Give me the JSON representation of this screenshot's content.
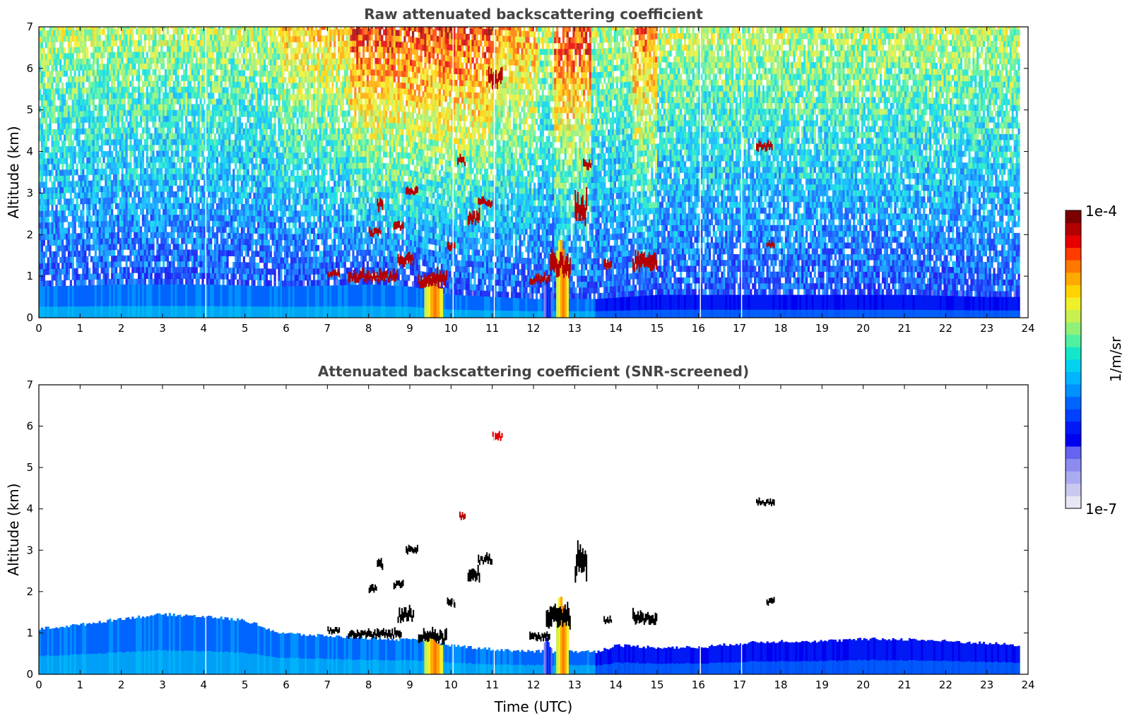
{
  "chart_data": [
    {
      "type": "heatmap",
      "title": "Raw attenuated backscattering coefficient",
      "xlabel": "",
      "ylabel": "Altitude (km)",
      "xlim": [
        0,
        24
      ],
      "ylim": [
        0,
        7
      ],
      "x_ticks": [
        "0",
        "1",
        "2",
        "3",
        "4",
        "5",
        "6",
        "7",
        "8",
        "9",
        "10",
        "11",
        "12",
        "13",
        "14",
        "15",
        "16",
        "17",
        "18",
        "19",
        "20",
        "21",
        "22",
        "23",
        "24"
      ],
      "y_ticks": [
        "0",
        "1",
        "2",
        "3",
        "4",
        "5",
        "6",
        "7"
      ],
      "data_end_time": 23.8,
      "data_gaps": [
        4.05,
        10.05,
        11.05,
        16.05,
        17.05
      ],
      "noise_level": 0.65,
      "boundary_layer": [
        {
          "t": 0,
          "top": 0.75
        },
        {
          "t": 2,
          "top": 0.8
        },
        {
          "t": 4,
          "top": 0.8
        },
        {
          "t": 6,
          "top": 0.75
        },
        {
          "t": 8,
          "top": 0.8
        },
        {
          "t": 9,
          "top": 0.75
        },
        {
          "t": 10,
          "top": 0.55
        },
        {
          "t": 12,
          "top": 0.45
        },
        {
          "t": 13.5,
          "top": 0.45
        },
        {
          "t": 15,
          "top": 0.55
        },
        {
          "t": 18,
          "top": 0.55
        },
        {
          "t": 21,
          "top": 0.55
        },
        {
          "t": 23,
          "top": 0.5
        },
        {
          "t": 23.8,
          "top": 0.5
        }
      ],
      "elevated_noise": [
        {
          "start": 5.8,
          "end": 7.5,
          "level": 0.75
        },
        {
          "start": 7.5,
          "end": 11.0,
          "level": 0.9
        },
        {
          "start": 11.0,
          "end": 12.1,
          "level": 0.8
        },
        {
          "start": 12.5,
          "end": 13.4,
          "level": 0.9
        },
        {
          "start": 14.4,
          "end": 15.0,
          "level": 0.85
        }
      ],
      "clouds": [
        {
          "t0": 7.0,
          "t1": 7.3,
          "z0": 1.0,
          "z1": 1.15,
          "level": 0.95
        },
        {
          "t0": 7.5,
          "t1": 8.7,
          "z0": 0.9,
          "z1": 1.15,
          "level": 0.95
        },
        {
          "t0": 8.0,
          "t1": 8.3,
          "z0": 2.0,
          "z1": 2.2,
          "level": 0.95
        },
        {
          "t0": 8.2,
          "t1": 8.35,
          "z0": 2.6,
          "z1": 2.9,
          "level": 0.95
        },
        {
          "t0": 8.6,
          "t1": 8.85,
          "z0": 2.1,
          "z1": 2.35,
          "level": 0.95
        },
        {
          "t0": 8.9,
          "t1": 9.2,
          "z0": 2.95,
          "z1": 3.15,
          "level": 0.95
        },
        {
          "t0": 8.7,
          "t1": 9.1,
          "z0": 1.3,
          "z1": 1.6,
          "level": 0.95
        },
        {
          "t0": 9.2,
          "t1": 9.9,
          "z0": 0.8,
          "z1": 1.15,
          "level": 0.95
        },
        {
          "t0": 9.9,
          "t1": 10.1,
          "z0": 1.65,
          "z1": 1.85,
          "level": 0.95
        },
        {
          "t0": 10.15,
          "t1": 10.35,
          "z0": 3.7,
          "z1": 3.9,
          "level": 0.95
        },
        {
          "t0": 10.4,
          "t1": 10.7,
          "z0": 2.3,
          "z1": 2.6,
          "level": 0.95
        },
        {
          "t0": 10.65,
          "t1": 11.0,
          "z0": 2.7,
          "z1": 2.9,
          "level": 0.95
        },
        {
          "t0": 10.9,
          "t1": 11.25,
          "z0": 5.6,
          "z1": 6.0,
          "level": 0.97
        },
        {
          "t0": 11.9,
          "t1": 12.4,
          "z0": 0.85,
          "z1": 1.05,
          "level": 0.95
        },
        {
          "t0": 12.4,
          "t1": 12.9,
          "z0": 1.1,
          "z1": 1.6,
          "level": 0.95
        },
        {
          "t0": 13.0,
          "t1": 13.3,
          "z0": 2.4,
          "z1": 3.1,
          "level": 0.95
        },
        {
          "t0": 13.2,
          "t1": 13.4,
          "z0": 3.6,
          "z1": 3.8,
          "level": 0.95
        },
        {
          "t0": 13.7,
          "t1": 13.9,
          "z0": 1.2,
          "z1": 1.4,
          "level": 0.95
        },
        {
          "t0": 14.4,
          "t1": 15.0,
          "z0": 1.2,
          "z1": 1.6,
          "level": 0.95
        },
        {
          "t0": 17.4,
          "t1": 17.8,
          "z0": 4.05,
          "z1": 4.25,
          "level": 0.97
        },
        {
          "t0": 17.65,
          "t1": 17.85,
          "z0": 1.7,
          "z1": 1.85,
          "level": 0.95
        }
      ],
      "plumes": [
        {
          "t0": 9.35,
          "t1": 9.8,
          "top": 1.0,
          "level": 0.82
        },
        {
          "t0": 12.25,
          "t1": 12.45,
          "top": 0.9,
          "level": 0.3
        },
        {
          "t0": 12.55,
          "t1": 12.85,
          "top": 1.9,
          "level": 0.82
        }
      ]
    },
    {
      "type": "heatmap",
      "title": "Attenuated backscattering coefficient (SNR-screened)",
      "xlabel": "Time (UTC)",
      "ylabel": "Altitude (km)",
      "xlim": [
        0,
        24
      ],
      "ylim": [
        0,
        7
      ],
      "x_ticks": [
        "0",
        "1",
        "2",
        "3",
        "4",
        "5",
        "6",
        "7",
        "8",
        "9",
        "10",
        "11",
        "12",
        "13",
        "14",
        "15",
        "16",
        "17",
        "18",
        "19",
        "20",
        "21",
        "22",
        "23",
        "24"
      ],
      "y_ticks": [
        "0",
        "1",
        "2",
        "3",
        "4",
        "5",
        "6",
        "7"
      ],
      "data_end_time": 23.8,
      "data_gaps": [
        4.05,
        10.05,
        11.05,
        16.05,
        17.05
      ],
      "screened_layer": [
        {
          "t": 0,
          "top": 1.1
        },
        {
          "t": 1,
          "top": 1.2
        },
        {
          "t": 2,
          "top": 1.35
        },
        {
          "t": 3,
          "top": 1.45
        },
        {
          "t": 4,
          "top": 1.4
        },
        {
          "t": 5,
          "top": 1.3
        },
        {
          "t": 5.8,
          "top": 1.0
        },
        {
          "t": 6.5,
          "top": 0.95
        },
        {
          "t": 7.5,
          "top": 0.9
        },
        {
          "t": 8.5,
          "top": 0.85
        },
        {
          "t": 9.5,
          "top": 0.8
        },
        {
          "t": 10,
          "top": 0.7
        },
        {
          "t": 11,
          "top": 0.6
        },
        {
          "t": 12,
          "top": 0.55
        },
        {
          "t": 13.5,
          "top": 0.55
        },
        {
          "t": 14,
          "top": 0.7
        },
        {
          "t": 15,
          "top": 0.65
        },
        {
          "t": 16,
          "top": 0.65
        },
        {
          "t": 17,
          "top": 0.75
        },
        {
          "t": 18,
          "top": 0.8
        },
        {
          "t": 19,
          "top": 0.8
        },
        {
          "t": 20,
          "top": 0.85
        },
        {
          "t": 21,
          "top": 0.85
        },
        {
          "t": 22,
          "top": 0.8
        },
        {
          "t": 23,
          "top": 0.75
        },
        {
          "t": 23.8,
          "top": 0.7
        }
      ],
      "clouds": [
        {
          "t0": 7.0,
          "t1": 7.3,
          "z0": 1.0,
          "z1": 1.15,
          "level": 0.0
        },
        {
          "t0": 7.5,
          "t1": 8.8,
          "z0": 0.9,
          "z1": 1.1,
          "level": 0.0
        },
        {
          "t0": 8.0,
          "t1": 8.2,
          "z0": 2.0,
          "z1": 2.2,
          "level": 0.0
        },
        {
          "t0": 8.2,
          "t1": 8.35,
          "z0": 2.6,
          "z1": 2.9,
          "level": 0.0
        },
        {
          "t0": 8.6,
          "t1": 8.85,
          "z0": 2.1,
          "z1": 2.3,
          "level": 0.0
        },
        {
          "t0": 8.9,
          "t1": 9.2,
          "z0": 2.95,
          "z1": 3.15,
          "level": 0.0
        },
        {
          "t0": 8.7,
          "t1": 9.1,
          "z0": 1.3,
          "z1": 1.6,
          "level": 0.0
        },
        {
          "t0": 9.2,
          "t1": 9.9,
          "z0": 0.8,
          "z1": 1.1,
          "level": 0.0
        },
        {
          "t0": 9.9,
          "t1": 10.1,
          "z0": 1.65,
          "z1": 1.85,
          "level": 0.0
        },
        {
          "t0": 10.2,
          "t1": 10.35,
          "z0": 3.75,
          "z1": 3.9,
          "level": 0.96
        },
        {
          "t0": 10.4,
          "t1": 10.7,
          "z0": 2.3,
          "z1": 2.6,
          "level": 0.0
        },
        {
          "t0": 10.65,
          "t1": 11.0,
          "z0": 2.7,
          "z1": 2.9,
          "level": 0.0
        },
        {
          "t0": 11.0,
          "t1": 11.25,
          "z0": 5.7,
          "z1": 5.9,
          "level": 0.93
        },
        {
          "t0": 11.9,
          "t1": 12.4,
          "z0": 0.85,
          "z1": 1.05,
          "level": 0.0
        },
        {
          "t0": 12.3,
          "t1": 12.9,
          "z0": 1.2,
          "z1": 1.7,
          "level": 0.0
        },
        {
          "t0": 13.0,
          "t1": 13.3,
          "z0": 2.4,
          "z1": 3.1,
          "level": 0.0
        },
        {
          "t0": 13.7,
          "t1": 13.9,
          "z0": 1.25,
          "z1": 1.4,
          "level": 0.0
        },
        {
          "t0": 14.4,
          "t1": 15.0,
          "z0": 1.25,
          "z1": 1.55,
          "level": 0.0
        },
        {
          "t0": 17.4,
          "t1": 17.85,
          "z0": 4.1,
          "z1": 4.25,
          "level": 0.0
        },
        {
          "t0": 17.65,
          "t1": 17.85,
          "z0": 1.7,
          "z1": 1.85,
          "level": 0.0
        }
      ],
      "plumes": [
        {
          "t0": 9.35,
          "t1": 9.8,
          "top": 1.0,
          "level": 0.82
        },
        {
          "t0": 12.25,
          "t1": 12.45,
          "top": 0.9,
          "level": 0.3
        },
        {
          "t0": 12.55,
          "t1": 12.85,
          "top": 1.9,
          "level": 0.82
        }
      ]
    }
  ],
  "colorbar": {
    "label": "1/m/sr",
    "max_label": "1e-4",
    "min_label": "1e-7",
    "colors": [
      "#e6e6f5",
      "#c8c8f0",
      "#aaaaf0",
      "#8c8cf0",
      "#6464f0",
      "#0000f0",
      "#0019f5",
      "#0040ff",
      "#0064ff",
      "#0090ff",
      "#00b4ff",
      "#00d2f0",
      "#14e6c8",
      "#50f0a0",
      "#90f078",
      "#c8f050",
      "#f0f02a",
      "#ffd200",
      "#ffaa00",
      "#ff7800",
      "#ff3c00",
      "#e60000",
      "#b40000",
      "#7d0000"
    ]
  }
}
